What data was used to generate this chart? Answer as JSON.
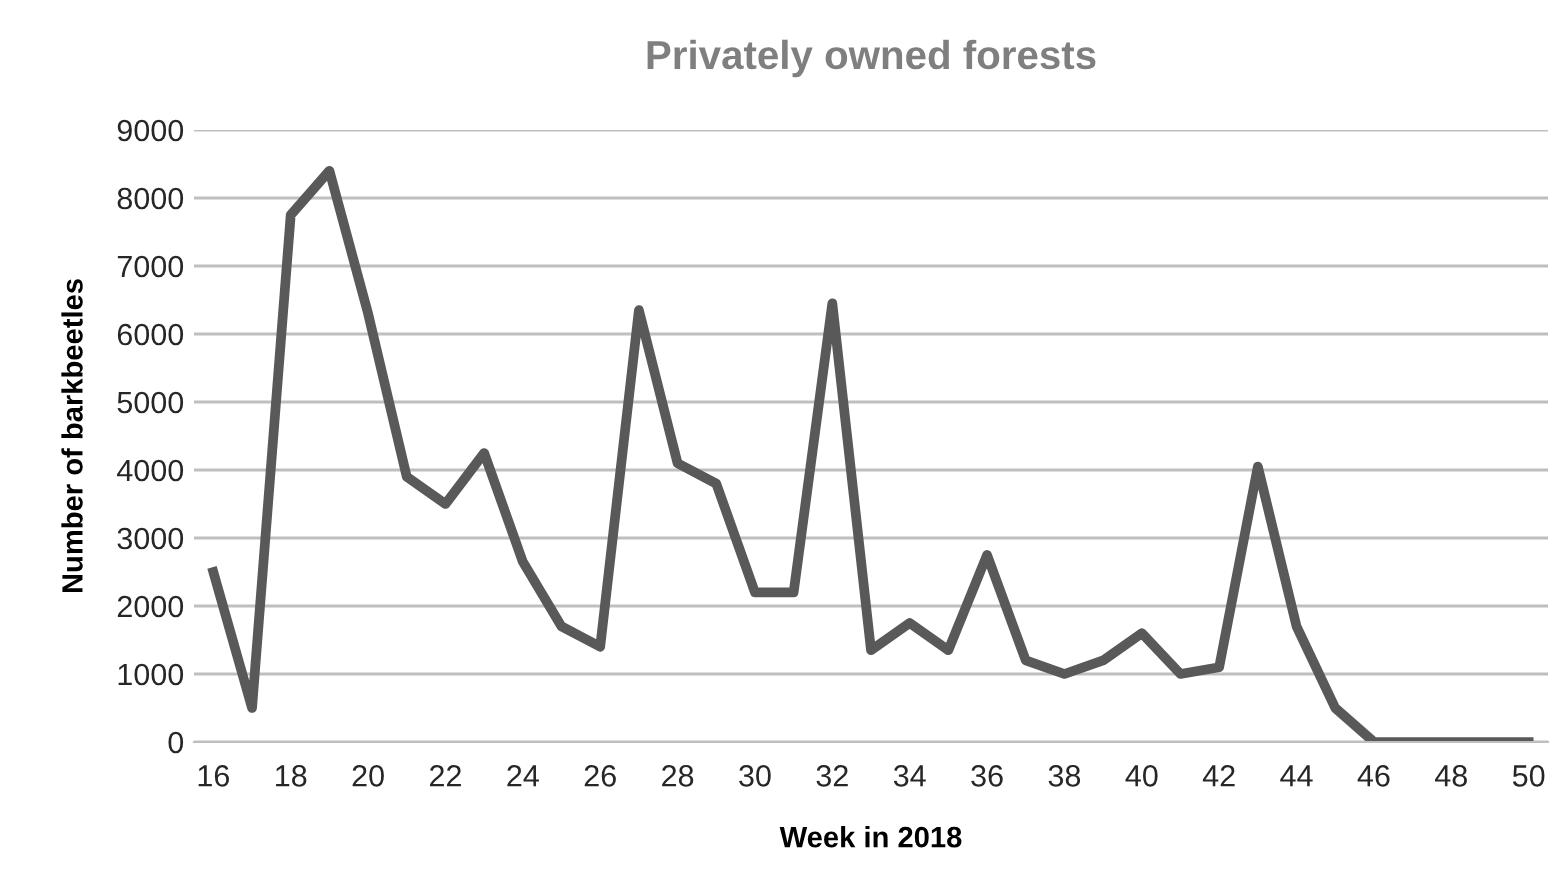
{
  "chart_data": {
    "type": "line",
    "title": "Privately owned forests",
    "xlabel": "Week in 2018",
    "ylabel": "Number of barkbeetles",
    "x": [
      16,
      17,
      18,
      19,
      20,
      21,
      22,
      23,
      24,
      25,
      26,
      27,
      28,
      29,
      30,
      31,
      32,
      33,
      34,
      35,
      36,
      37,
      38,
      39,
      40,
      41,
      42,
      43,
      44,
      45,
      46,
      47,
      48,
      49,
      50
    ],
    "series": [
      {
        "color": "#595959",
        "values": [
          2500,
          500,
          7750,
          8400,
          6300,
          3900,
          3500,
          4250,
          2650,
          1700,
          1400,
          6350,
          4100,
          3800,
          2200,
          2200,
          6450,
          1350,
          1750,
          1350,
          2750,
          1200,
          1000,
          1200,
          1600,
          1000,
          1100,
          4050,
          1700,
          500,
          0,
          0,
          0,
          0,
          0
        ]
      }
    ],
    "xlim": [
      15.5,
      50.5
    ],
    "xticks": [
      16,
      18,
      20,
      22,
      24,
      26,
      28,
      30,
      32,
      34,
      36,
      38,
      40,
      42,
      44,
      46,
      48,
      50
    ],
    "ylim": [
      0,
      9000
    ],
    "yticks": [
      0,
      1000,
      2000,
      3000,
      4000,
      5000,
      6000,
      7000,
      8000,
      9000
    ],
    "grid": "y",
    "legend": false,
    "marker": "none",
    "line_style": "solid"
  }
}
